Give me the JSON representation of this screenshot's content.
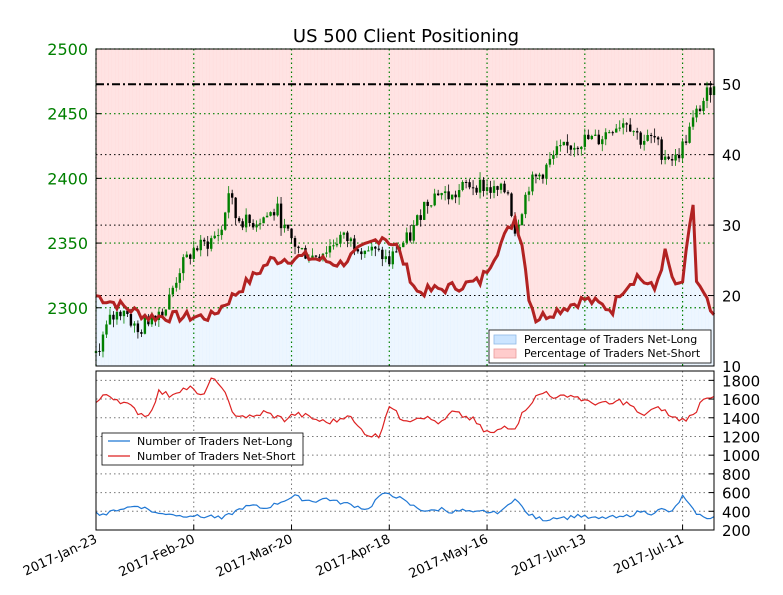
{
  "chart_data": [
    {
      "type": "candlestick",
      "title": "US 500 Client Positioning",
      "y_left_ticks": [
        "2300",
        "2350",
        "2400",
        "2450",
        "2500"
      ],
      "y_left_range": [
        2255,
        2500
      ],
      "y_right_ticks": [
        "10",
        "20",
        "30",
        "40",
        "50"
      ],
      "y_right_range": [
        10,
        55
      ],
      "x_ticks": [
        "2017-Jan-23",
        "2017-Feb-20",
        "2017-Mar-20",
        "2017-Apr-18",
        "2017-May-16",
        "2017-Jun-13",
        "2017-Jul-11"
      ],
      "x_tick_positions": [
        0,
        28,
        56,
        84,
        112,
        140,
        168
      ],
      "x_range": [
        0,
        177
      ],
      "legend": [
        "Percentage of Traders Net-Long",
        "Percentage of Traders Net-Short"
      ],
      "legend_position": "lower-right",
      "colors": {
        "price": "#008000",
        "sentiment_line": "#b22222",
        "net_long_fill": "#cce5ff",
        "net_short_fill": "#ffcccc"
      },
      "reference_levels": [
        50,
        40,
        30,
        20
      ],
      "price_keypoints": [
        [
          0,
          2265
        ],
        [
          4,
          2290
        ],
        [
          8,
          2300
        ],
        [
          12,
          2280
        ],
        [
          16,
          2295
        ],
        [
          20,
          2300
        ],
        [
          24,
          2330
        ],
        [
          28,
          2345
        ],
        [
          32,
          2350
        ],
        [
          36,
          2360
        ],
        [
          38,
          2390
        ],
        [
          40,
          2370
        ],
        [
          44,
          2365
        ],
        [
          48,
          2370
        ],
        [
          52,
          2375
        ],
        [
          54,
          2360
        ],
        [
          58,
          2345
        ],
        [
          62,
          2340
        ],
        [
          66,
          2345
        ],
        [
          70,
          2355
        ],
        [
          74,
          2350
        ],
        [
          78,
          2345
        ],
        [
          82,
          2340
        ],
        [
          84,
          2335
        ],
        [
          86,
          2345
        ],
        [
          90,
          2355
        ],
        [
          94,
          2380
        ],
        [
          98,
          2390
        ],
        [
          102,
          2385
        ],
        [
          106,
          2395
        ],
        [
          110,
          2395
        ],
        [
          114,
          2390
        ],
        [
          118,
          2390
        ],
        [
          120,
          2360
        ],
        [
          124,
          2395
        ],
        [
          128,
          2405
        ],
        [
          132,
          2420
        ],
        [
          136,
          2425
        ],
        [
          140,
          2430
        ],
        [
          144,
          2430
        ],
        [
          148,
          2440
        ],
        [
          152,
          2445
        ],
        [
          156,
          2430
        ],
        [
          160,
          2430
        ],
        [
          162,
          2420
        ],
        [
          166,
          2415
        ],
        [
          168,
          2425
        ],
        [
          172,
          2450
        ],
        [
          175,
          2465
        ],
        [
          177,
          2475
        ]
      ],
      "sentiment_keypoints": [
        [
          0,
          21
        ],
        [
          1,
          19
        ],
        [
          3,
          20
        ],
        [
          5,
          23
        ],
        [
          7,
          24
        ],
        [
          9,
          24.5
        ],
        [
          11,
          22
        ],
        [
          13,
          18
        ],
        [
          15,
          19
        ],
        [
          17,
          18
        ],
        [
          19,
          17.5
        ],
        [
          21,
          18
        ],
        [
          23,
          17
        ],
        [
          25,
          18
        ],
        [
          27,
          18.5
        ],
        [
          29,
          18
        ],
        [
          31,
          16
        ],
        [
          33,
          18
        ],
        [
          35,
          20
        ],
        [
          37,
          23
        ],
        [
          39,
          27
        ],
        [
          41,
          28
        ],
        [
          43,
          27
        ],
        [
          45,
          26
        ],
        [
          47,
          24
        ],
        [
          49,
          25
        ],
        [
          51,
          23
        ],
        [
          53,
          25
        ],
        [
          55,
          24
        ],
        [
          57,
          23
        ],
        [
          59,
          24
        ],
        [
          61,
          23
        ],
        [
          63,
          24
        ],
        [
          65,
          23
        ],
        [
          67,
          24
        ],
        [
          69,
          25
        ],
        [
          71,
          24
        ],
        [
          73,
          23
        ],
        [
          75,
          24
        ],
        [
          77,
          25
        ],
        [
          79,
          24
        ],
        [
          81,
          26
        ],
        [
          83,
          25
        ],
        [
          85,
          24
        ],
        [
          87,
          23
        ],
        [
          89,
          24
        ],
        [
          91,
          25
        ],
        [
          93,
          26
        ],
        [
          95,
          24
        ],
        [
          97,
          22
        ],
        [
          99,
          23
        ],
        [
          101,
          24
        ],
        [
          103,
          23
        ],
        [
          105,
          24
        ],
        [
          107,
          23
        ],
        [
          109,
          22
        ],
        [
          111,
          23
        ],
        [
          113,
          24
        ],
        [
          115,
          23
        ],
        [
          117,
          22
        ],
        [
          119,
          22
        ],
        [
          121,
          32
        ],
        [
          123,
          26
        ],
        [
          125,
          18
        ],
        [
          127,
          17
        ],
        [
          129,
          17.5
        ],
        [
          131,
          18
        ],
        [
          133,
          17
        ],
        [
          135,
          18
        ],
        [
          137,
          19
        ],
        [
          139,
          18
        ],
        [
          141,
          19
        ],
        [
          143,
          18
        ],
        [
          145,
          20
        ],
        [
          147,
          19
        ],
        [
          149,
          19.5
        ],
        [
          151,
          21
        ],
        [
          153,
          22
        ],
        [
          155,
          21
        ],
        [
          157,
          20.5
        ],
        [
          159,
          21
        ],
        [
          161,
          25
        ],
        [
          163,
          20
        ],
        [
          165,
          22
        ],
        [
          167,
          20
        ],
        [
          169,
          21
        ],
        [
          171,
          33
        ],
        [
          172,
          26
        ],
        [
          174,
          24
        ],
        [
          176,
          23
        ],
        [
          177,
          24
        ]
      ],
      "sentiment_pinned_segments": [
        [
          0,
          20
        ],
        [
          15,
          17
        ],
        [
          33,
          17
        ],
        [
          50,
          25
        ],
        [
          60,
          25.5
        ],
        [
          70,
          24.5
        ],
        [
          82,
          28.5
        ],
        [
          86,
          27
        ],
        [
          92,
          20.5
        ],
        [
          100,
          21
        ],
        [
          110,
          22
        ],
        [
          120,
          31
        ],
        [
          122,
          27.5
        ],
        [
          124,
          20
        ],
        [
          126,
          16.7
        ],
        [
          140,
          19.5
        ],
        [
          148,
          18
        ],
        [
          150,
          20.5
        ],
        [
          155,
          22.8
        ],
        [
          160,
          20.8
        ],
        [
          163,
          26
        ],
        [
          166,
          21
        ],
        [
          168,
          22
        ],
        [
          171,
          33
        ],
        [
          172,
          22
        ],
        [
          175,
          19
        ],
        [
          177,
          16.5
        ]
      ]
    },
    {
      "type": "line",
      "y_ticks": [
        "200",
        "400",
        "600",
        "800",
        "1000",
        "1200",
        "1400",
        "1600",
        "1800"
      ],
      "y_range": [
        200,
        1900
      ],
      "legend_position": "center-left",
      "series": [
        {
          "name": "Number of Traders Net-Long",
          "color": "#1f77d4",
          "keypoints": [
            [
              0,
              380
            ],
            [
              3,
              370
            ],
            [
              6,
              420
            ],
            [
              9,
              440
            ],
            [
              12,
              460
            ],
            [
              15,
              420
            ],
            [
              18,
              370
            ],
            [
              21,
              380
            ],
            [
              24,
              350
            ],
            [
              27,
              360
            ],
            [
              30,
              340
            ],
            [
              33,
              350
            ],
            [
              36,
              320
            ],
            [
              39,
              380
            ],
            [
              42,
              440
            ],
            [
              45,
              460
            ],
            [
              48,
              430
            ],
            [
              51,
              470
            ],
            [
              54,
              520
            ],
            [
              57,
              560
            ],
            [
              60,
              520
            ],
            [
              63,
              510
            ],
            [
              66,
              540
            ],
            [
              69,
              500
            ],
            [
              72,
              480
            ],
            [
              75,
              450
            ],
            [
              78,
              420
            ],
            [
              81,
              560
            ],
            [
              84,
              590
            ],
            [
              87,
              540
            ],
            [
              90,
              470
            ],
            [
              93,
              420
            ],
            [
              96,
              400
            ],
            [
              99,
              430
            ],
            [
              102,
              390
            ],
            [
              105,
              410
            ],
            [
              108,
              380
            ],
            [
              111,
              400
            ],
            [
              114,
              380
            ],
            [
              117,
              420
            ],
            [
              120,
              550
            ],
            [
              123,
              390
            ],
            [
              126,
              330
            ],
            [
              129,
              310
            ],
            [
              132,
              340
            ],
            [
              135,
              330
            ],
            [
              138,
              360
            ],
            [
              141,
              330
            ],
            [
              144,
              320
            ],
            [
              147,
              340
            ],
            [
              150,
              330
            ],
            [
              153,
              360
            ],
            [
              156,
              400
            ],
            [
              159,
              380
            ],
            [
              162,
              420
            ],
            [
              165,
              390
            ],
            [
              168,
              560
            ],
            [
              171,
              410
            ],
            [
              174,
              330
            ],
            [
              177,
              340
            ]
          ]
        },
        {
          "name": "Number of Traders Net-Short",
          "color": "#dd2222",
          "keypoints": [
            [
              0,
              1560
            ],
            [
              3,
              1650
            ],
            [
              6,
              1600
            ],
            [
              9,
              1540
            ],
            [
              12,
              1460
            ],
            [
              15,
              1420
            ],
            [
              18,
              1680
            ],
            [
              21,
              1640
            ],
            [
              24,
              1700
            ],
            [
              27,
              1720
            ],
            [
              30,
              1620
            ],
            [
              33,
              1800
            ],
            [
              36,
              1750
            ],
            [
              39,
              1450
            ],
            [
              42,
              1420
            ],
            [
              45,
              1400
            ],
            [
              48,
              1460
            ],
            [
              51,
              1420
            ],
            [
              54,
              1380
            ],
            [
              57,
              1440
            ],
            [
              60,
              1420
            ],
            [
              63,
              1380
            ],
            [
              66,
              1350
            ],
            [
              69,
              1370
            ],
            [
              72,
              1440
            ],
            [
              75,
              1300
            ],
            [
              78,
              1220
            ],
            [
              81,
              1200
            ],
            [
              84,
              1540
            ],
            [
              87,
              1400
            ],
            [
              90,
              1380
            ],
            [
              93,
              1420
            ],
            [
              96,
              1380
            ],
            [
              99,
              1340
            ],
            [
              102,
              1460
            ],
            [
              105,
              1420
            ],
            [
              108,
              1380
            ],
            [
              111,
              1260
            ],
            [
              114,
              1230
            ],
            [
              117,
              1310
            ],
            [
              120,
              1300
            ],
            [
              123,
              1500
            ],
            [
              126,
              1620
            ],
            [
              129,
              1680
            ],
            [
              132,
              1600
            ],
            [
              135,
              1650
            ],
            [
              138,
              1620
            ],
            [
              141,
              1560
            ],
            [
              144,
              1560
            ],
            [
              147,
              1540
            ],
            [
              150,
              1580
            ],
            [
              153,
              1540
            ],
            [
              156,
              1420
            ],
            [
              159,
              1480
            ],
            [
              162,
              1500
            ],
            [
              165,
              1400
            ],
            [
              168,
              1380
            ],
            [
              171,
              1420
            ],
            [
              174,
              1620
            ],
            [
              177,
              1640
            ]
          ]
        }
      ]
    }
  ]
}
